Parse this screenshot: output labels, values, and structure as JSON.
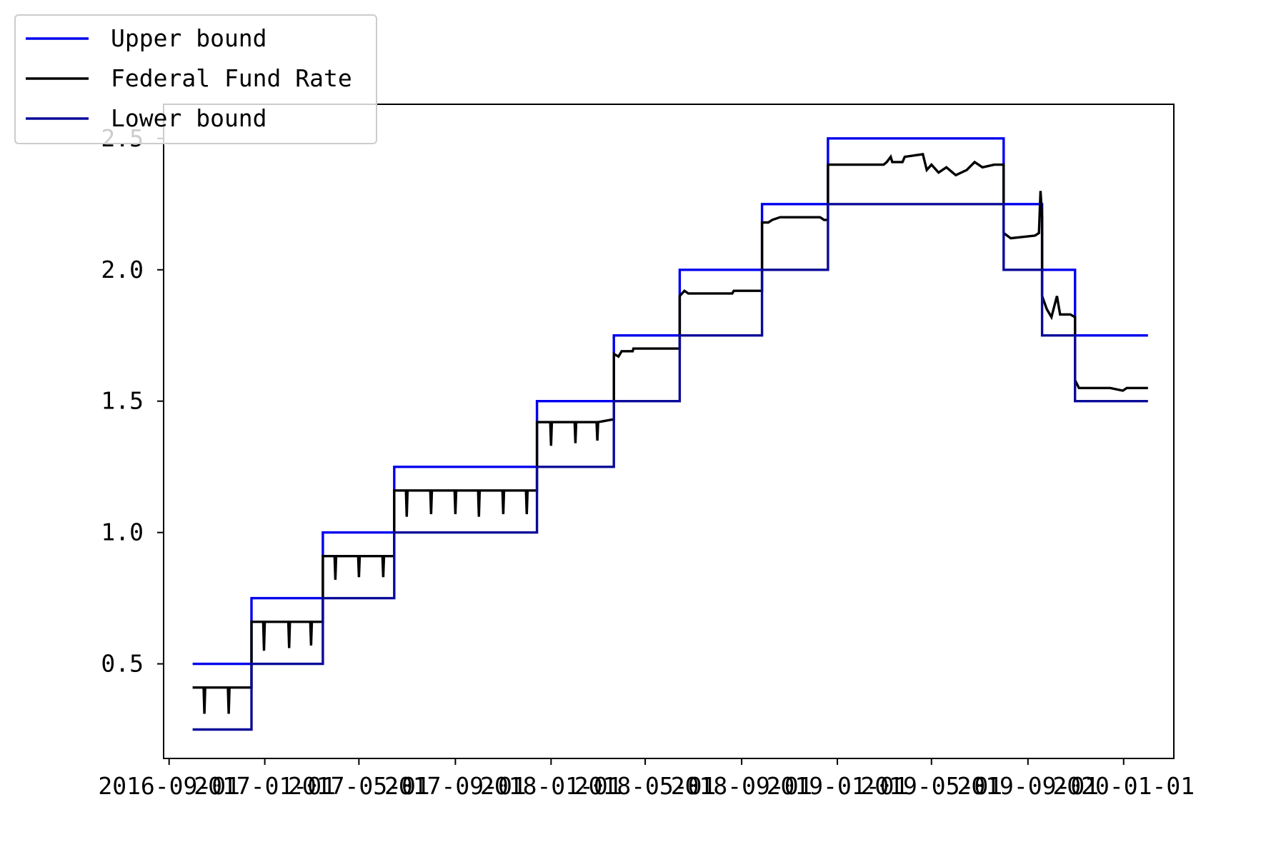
{
  "chart_data": {
    "type": "line",
    "title": "",
    "xlabel": "",
    "ylabel": "",
    "xlim": [
      "2016-08-25",
      "2020-03-05"
    ],
    "ylim": [
      0.14,
      2.63
    ],
    "grid": false,
    "legend_position": "top-left",
    "x_ticks": [
      "2016-09",
      "2017-01",
      "2017-05",
      "2017-09",
      "2018-01",
      "2018-05",
      "2018-09",
      "2019-01",
      "2019-05",
      "2019-09",
      "2020-01"
    ],
    "y_ticks": [
      "0.5",
      "1.0",
      "1.5",
      "2.0",
      "2.5"
    ],
    "y_tick_values": [
      0.5,
      1.0,
      1.5,
      2.0,
      2.5
    ],
    "series": [
      {
        "name": "Upper bound",
        "color": "#0000ee",
        "points": [
          [
            "2016-10-01",
            0.5
          ],
          [
            "2016-12-15",
            0.5
          ],
          [
            "2016-12-15",
            0.75
          ],
          [
            "2017-03-16",
            0.75
          ],
          [
            "2017-03-16",
            1.0
          ],
          [
            "2017-06-15",
            1.0
          ],
          [
            "2017-06-15",
            1.25
          ],
          [
            "2017-12-14",
            1.25
          ],
          [
            "2017-12-14",
            1.5
          ],
          [
            "2018-03-22",
            1.5
          ],
          [
            "2018-03-22",
            1.75
          ],
          [
            "2018-06-14",
            1.75
          ],
          [
            "2018-06-14",
            2.0
          ],
          [
            "2018-09-27",
            2.0
          ],
          [
            "2018-09-27",
            2.25
          ],
          [
            "2018-12-20",
            2.25
          ],
          [
            "2018-12-20",
            2.5
          ],
          [
            "2019-08-01",
            2.5
          ],
          [
            "2019-08-01",
            2.25
          ],
          [
            "2019-09-19",
            2.25
          ],
          [
            "2019-09-19",
            2.0
          ],
          [
            "2019-10-31",
            2.0
          ],
          [
            "2019-10-31",
            1.75
          ],
          [
            "2020-02-01",
            1.75
          ]
        ]
      },
      {
        "name": "Federal Fund Rate",
        "color": "#000000",
        "points": [
          [
            "2016-10-01",
            0.41
          ],
          [
            "2016-10-15",
            0.41
          ],
          [
            "2016-10-16",
            0.31
          ],
          [
            "2016-10-17",
            0.41
          ],
          [
            "2016-11-15",
            0.41
          ],
          [
            "2016-11-16",
            0.31
          ],
          [
            "2016-11-17",
            0.41
          ],
          [
            "2016-12-15",
            0.41
          ],
          [
            "2016-12-15",
            0.66
          ],
          [
            "2016-12-30",
            0.66
          ],
          [
            "2016-12-31",
            0.55
          ],
          [
            "2017-01-01",
            0.66
          ],
          [
            "2017-01-31",
            0.66
          ],
          [
            "2017-02-01",
            0.56
          ],
          [
            "2017-02-02",
            0.66
          ],
          [
            "2017-02-28",
            0.66
          ],
          [
            "2017-03-01",
            0.57
          ],
          [
            "2017-03-02",
            0.66
          ],
          [
            "2017-03-16",
            0.66
          ],
          [
            "2017-03-16",
            0.91
          ],
          [
            "2017-03-31",
            0.91
          ],
          [
            "2017-04-01",
            0.82
          ],
          [
            "2017-04-02",
            0.91
          ],
          [
            "2017-04-30",
            0.91
          ],
          [
            "2017-05-01",
            0.83
          ],
          [
            "2017-05-02",
            0.91
          ],
          [
            "2017-05-31",
            0.91
          ],
          [
            "2017-06-01",
            0.83
          ],
          [
            "2017-06-02",
            0.91
          ],
          [
            "2017-06-15",
            0.91
          ],
          [
            "2017-06-15",
            1.16
          ],
          [
            "2017-06-30",
            1.16
          ],
          [
            "2017-07-01",
            1.06
          ],
          [
            "2017-07-02",
            1.16
          ],
          [
            "2017-07-31",
            1.16
          ],
          [
            "2017-08-01",
            1.07
          ],
          [
            "2017-08-02",
            1.16
          ],
          [
            "2017-08-31",
            1.16
          ],
          [
            "2017-09-01",
            1.07
          ],
          [
            "2017-09-02",
            1.16
          ],
          [
            "2017-09-30",
            1.16
          ],
          [
            "2017-10-01",
            1.06
          ],
          [
            "2017-10-02",
            1.16
          ],
          [
            "2017-10-31",
            1.16
          ],
          [
            "2017-11-01",
            1.07
          ],
          [
            "2017-11-02",
            1.16
          ],
          [
            "2017-11-30",
            1.16
          ],
          [
            "2017-12-01",
            1.07
          ],
          [
            "2017-12-02",
            1.16
          ],
          [
            "2017-12-14",
            1.16
          ],
          [
            "2017-12-14",
            1.42
          ],
          [
            "2017-12-31",
            1.42
          ],
          [
            "2018-01-01",
            1.33
          ],
          [
            "2018-01-02",
            1.42
          ],
          [
            "2018-01-31",
            1.42
          ],
          [
            "2018-02-01",
            1.34
          ],
          [
            "2018-02-02",
            1.42
          ],
          [
            "2018-02-28",
            1.42
          ],
          [
            "2018-03-01",
            1.35
          ],
          [
            "2018-03-02",
            1.42
          ],
          [
            "2018-03-20",
            1.43
          ],
          [
            "2018-03-22",
            1.43
          ],
          [
            "2018-03-22",
            1.68
          ],
          [
            "2018-03-28",
            1.67
          ],
          [
            "2018-04-01",
            1.69
          ],
          [
            "2018-04-15",
            1.69
          ],
          [
            "2018-04-16",
            1.7
          ],
          [
            "2018-06-14",
            1.7
          ],
          [
            "2018-06-14",
            1.9
          ],
          [
            "2018-06-20",
            1.92
          ],
          [
            "2018-06-25",
            1.91
          ],
          [
            "2018-08-20",
            1.91
          ],
          [
            "2018-08-22",
            1.92
          ],
          [
            "2018-09-27",
            1.92
          ],
          [
            "2018-09-27",
            2.18
          ],
          [
            "2018-10-05",
            2.18
          ],
          [
            "2018-10-10",
            2.19
          ],
          [
            "2018-10-20",
            2.2
          ],
          [
            "2018-12-10",
            2.2
          ],
          [
            "2018-12-15",
            2.19
          ],
          [
            "2018-12-20",
            2.19
          ],
          [
            "2018-12-20",
            2.4
          ],
          [
            "2019-03-01",
            2.4
          ],
          [
            "2019-03-05",
            2.41
          ],
          [
            "2019-03-10",
            2.43
          ],
          [
            "2019-03-12",
            2.41
          ],
          [
            "2019-03-25",
            2.41
          ],
          [
            "2019-03-28",
            2.43
          ],
          [
            "2019-04-20",
            2.44
          ],
          [
            "2019-04-25",
            2.38
          ],
          [
            "2019-05-01",
            2.4
          ],
          [
            "2019-05-10",
            2.37
          ],
          [
            "2019-05-20",
            2.39
          ],
          [
            "2019-06-01",
            2.36
          ],
          [
            "2019-06-15",
            2.38
          ],
          [
            "2019-06-25",
            2.41
          ],
          [
            "2019-07-05",
            2.39
          ],
          [
            "2019-07-20",
            2.4
          ],
          [
            "2019-08-01",
            2.4
          ],
          [
            "2019-08-01",
            2.14
          ],
          [
            "2019-08-10",
            2.12
          ],
          [
            "2019-09-10",
            2.13
          ],
          [
            "2019-09-15",
            2.14
          ],
          [
            "2019-09-17",
            2.3
          ],
          [
            "2019-09-19",
            2.2
          ],
          [
            "2019-09-19",
            1.9
          ],
          [
            "2019-09-25",
            1.85
          ],
          [
            "2019-10-01",
            1.82
          ],
          [
            "2019-10-08",
            1.9
          ],
          [
            "2019-10-12",
            1.83
          ],
          [
            "2019-10-25",
            1.83
          ],
          [
            "2019-10-31",
            1.82
          ],
          [
            "2019-10-31",
            1.58
          ],
          [
            "2019-11-05",
            1.55
          ],
          [
            "2019-12-15",
            1.55
          ],
          [
            "2019-12-31",
            1.54
          ],
          [
            "2020-01-05",
            1.55
          ],
          [
            "2020-02-01",
            1.55
          ]
        ]
      },
      {
        "name": "Lower bound",
        "color": "#0a0a99",
        "points": [
          [
            "2016-10-01",
            0.25
          ],
          [
            "2016-12-15",
            0.25
          ],
          [
            "2016-12-15",
            0.5
          ],
          [
            "2017-03-16",
            0.5
          ],
          [
            "2017-03-16",
            0.75
          ],
          [
            "2017-06-15",
            0.75
          ],
          [
            "2017-06-15",
            1.0
          ],
          [
            "2017-12-14",
            1.0
          ],
          [
            "2017-12-14",
            1.25
          ],
          [
            "2018-03-22",
            1.25
          ],
          [
            "2018-03-22",
            1.5
          ],
          [
            "2018-06-14",
            1.5
          ],
          [
            "2018-06-14",
            1.75
          ],
          [
            "2018-09-27",
            1.75
          ],
          [
            "2018-09-27",
            2.0
          ],
          [
            "2018-12-20",
            2.0
          ],
          [
            "2018-12-20",
            2.25
          ],
          [
            "2019-08-01",
            2.25
          ],
          [
            "2019-08-01",
            2.0
          ],
          [
            "2019-09-19",
            2.0
          ],
          [
            "2019-09-19",
            1.75
          ],
          [
            "2019-10-31",
            1.75
          ],
          [
            "2019-10-31",
            1.5
          ],
          [
            "2020-02-01",
            1.5
          ]
        ]
      }
    ]
  }
}
